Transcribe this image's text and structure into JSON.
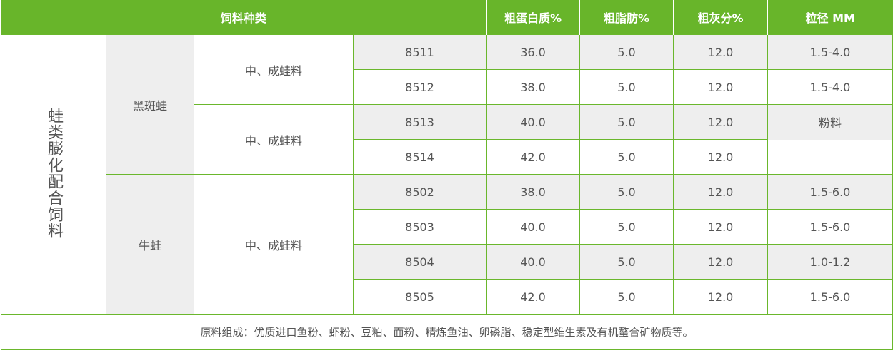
{
  "header": [
    "饲料种类",
    "粗蛋白质%",
    "粗脂肪%",
    "粗灰分%",
    "粒径 MM"
  ],
  "category": "蛙类膨化配合饲料",
  "species": [
    "黑斑蛙",
    "牛蛙"
  ],
  "stage": [
    "中、成蛙料",
    "中、成蛙料",
    "中、成蛙料"
  ],
  "rows": [
    {
      "code": "8511",
      "protein": "36.0",
      "fat": "5.0",
      "ash": "12.0",
      "size": "1.5-4.0"
    },
    {
      "code": "8512",
      "protein": "38.0",
      "fat": "5.0",
      "ash": "12.0",
      "size": "1.5-4.0"
    },
    {
      "code": "8513",
      "protein": "40.0",
      "fat": "5.0",
      "ash": "12.0",
      "size": "粉料"
    },
    {
      "code": "8514",
      "protein": "42.0",
      "fat": "5.0",
      "ash": "12.0",
      "size": ""
    },
    {
      "code": "8502",
      "protein": "38.0",
      "fat": "5.0",
      "ash": "12.0",
      "size": "1.5-6.0"
    },
    {
      "code": "8503",
      "protein": "40.0",
      "fat": "5.0",
      "ash": "12.0",
      "size": "1.5-6.0"
    },
    {
      "code": "8504",
      "protein": "40.0",
      "fat": "5.0",
      "ash": "12.0",
      "size": "1.0-1.2"
    },
    {
      "code": "8505",
      "protein": "42.0",
      "fat": "5.0",
      "ash": "12.0",
      "size": "1.5-6.0"
    }
  ],
  "footer": "原料组成：优质进口鱼粉、虾粉、豆粕、面粉、精炼鱼油、卵磷脂、稳定型维生素及有机螯合矿物质等。",
  "colors": {
    "accent": "#68b52a",
    "stripe": "#eeeeee"
  }
}
